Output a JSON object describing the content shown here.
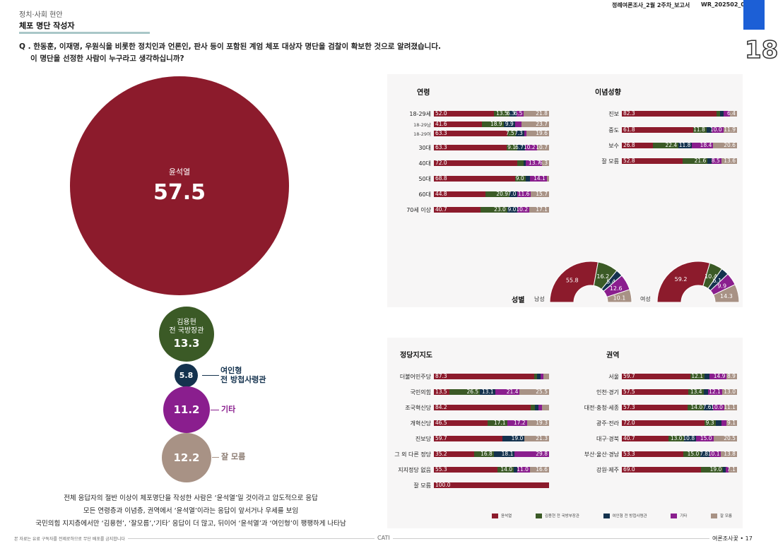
{
  "header": {
    "report_name": "정례여론조사_2월 2주차_보고서",
    "report_code": "WR_202502_0"
  },
  "page_number_large": "18",
  "section": "정치·사회 현안",
  "page_title": "체포 명단 작성자",
  "question": {
    "line1": "Q . 한동훈, 이재명, 우원식을 비롯한 정치인과 언론인, 판사 등이 포함된 계엄 체포 대상자 명단을 검찰이 확보한 것으로 알려졌습니다.",
    "line2": "이 명단을 선정한 사람이 누구라고 생각하십니까?"
  },
  "colors": {
    "yoon": "#8c1b2c",
    "kim": "#3b5a26",
    "yeo": "#14324e",
    "other": "#8a1e8e",
    "dk": "#a89285"
  },
  "bubbles": [
    {
      "key": "yoon",
      "label": "윤석열",
      "value": "57.5"
    },
    {
      "key": "kim",
      "label_line1": "김용현",
      "label_line2": "전 국방장관",
      "value": "13.3"
    },
    {
      "key": "yeo",
      "value": "5.8",
      "side_line1": "여인형",
      "side_line2": "전 방첩사령관"
    },
    {
      "key": "other",
      "value": "11.2",
      "side": "기타"
    },
    {
      "key": "dk",
      "value": "12.2",
      "side": "잘 모름"
    }
  ],
  "summary": [
    "전체 응답자의 절반 이상이 체포명단을 작성한 사람은 ‘윤석열’일 것이라고 압도적으로 응답",
    "모든 연령층과 이념층, 권역에서 ‘윤석열’이라는 응답이 앞서거나 우세를 보임",
    "국민의힘 지지층에서만 ‘김용현’, ‘잘모름’,‘기타’ 응답이 더 많고, 뒤이어 ‘윤석열’과 ‘여인형’이 팽팽하게 나타남"
  ],
  "legend": [
    "윤석열",
    "김용현 전 국방부장관",
    "여인형 전 방첩사령관",
    "기타",
    "잘 모름"
  ],
  "chart_data": [
    {
      "type": "bar",
      "title": "연령",
      "rows": [
        {
          "label": "18-29세",
          "values": [
            52.0,
            13.5,
            6.3,
            6.5,
            21.8
          ]
        },
        {
          "label": "18-29남",
          "small": true,
          "values": [
            41.6,
            18.9,
            9.9,
            5.8,
            23.7
          ]
        },
        {
          "label": "18-29여",
          "small": true,
          "values": [
            63.3,
            7.5,
            7.3,
            1.9,
            19.6
          ]
        },
        {
          "label": "30대",
          "values": [
            63.3,
            9.1,
            6.7,
            10.2,
            10.7
          ]
        },
        {
          "label": "40대",
          "values": [
            72.0,
            5.2,
            1.9,
            13.7,
            6.3
          ]
        },
        {
          "label": "50대",
          "values": [
            68.8,
            9.0,
            4.0,
            14.1,
            1.9
          ]
        },
        {
          "label": "60대",
          "values": [
            44.8,
            20.9,
            7.0,
            11.6,
            15.7
          ]
        },
        {
          "label": "70세 이상",
          "values": [
            40.7,
            23.0,
            9.0,
            10.2,
            17.1
          ]
        }
      ]
    },
    {
      "type": "bar",
      "title": "이념성향",
      "rows": [
        {
          "label": "진보",
          "values": [
            82.3,
            3.0,
            3.0,
            5.3,
            6.4
          ]
        },
        {
          "label": "중도",
          "values": [
            61.8,
            11.8,
            4.7,
            10.0,
            11.9
          ]
        },
        {
          "label": "보수",
          "values": [
            26.8,
            22.4,
            11.8,
            18.4,
            20.6
          ]
        },
        {
          "label": "잘 모름",
          "values": [
            52.8,
            21.6,
            3.5,
            8.5,
            13.6
          ]
        }
      ]
    },
    {
      "type": "pie",
      "title": "성별",
      "groups": [
        {
          "label": "남성",
          "values": [
            55.8,
            16.2,
            5.4,
            12.6,
            10.1
          ]
        },
        {
          "label": "여성",
          "values": [
            59.2,
            10.4,
            6.1,
            9.9,
            14.3
          ]
        }
      ]
    },
    {
      "type": "bar",
      "title": "정당지지도",
      "rows": [
        {
          "label": "더불어민주당",
          "values": [
            87.3,
            2.5,
            3.0,
            2.5,
            4.7
          ]
        },
        {
          "label": "국민의힘",
          "values": [
            13.5,
            26.5,
            13.1,
            21.4,
            25.5
          ]
        },
        {
          "label": "조국혁신당",
          "values": [
            84.2,
            3.5,
            3.4,
            3.0,
            5.9
          ]
        },
        {
          "label": "개혁신당",
          "values": [
            46.5,
            17.1,
            0.0,
            17.2,
            19.3
          ]
        },
        {
          "label": "진보당",
          "values": [
            59.7,
            0.0,
            19.0,
            0.0,
            21.3
          ]
        },
        {
          "label": "그 외 다른 정당",
          "values": [
            35.2,
            16.8,
            18.1,
            29.8,
            0.0
          ]
        },
        {
          "label": "지지정당 없음",
          "values": [
            55.3,
            14.0,
            3.0,
            11.0,
            16.6
          ]
        },
        {
          "label": "잘 모름",
          "values": [
            100.0,
            0,
            0,
            0,
            0
          ]
        }
      ]
    },
    {
      "type": "bar",
      "title": "권역",
      "rows": [
        {
          "label": "서울",
          "values": [
            59.7,
            12.1,
            4.4,
            14.9,
            8.9
          ]
        },
        {
          "label": "인천·경기",
          "values": [
            57.5,
            13.4,
            4.0,
            12.1,
            13.0
          ]
        },
        {
          "label": "대전·충청·세종",
          "values": [
            57.3,
            14.0,
            7.6,
            10.0,
            11.1
          ]
        },
        {
          "label": "광주·전라",
          "values": [
            72.0,
            9.3,
            5.1,
            4.5,
            9.1
          ]
        },
        {
          "label": "대구·경북",
          "values": [
            40.7,
            13.0,
            10.8,
            15.0,
            20.5
          ]
        },
        {
          "label": "부산·울산·경남",
          "values": [
            53.3,
            15.0,
            7.8,
            10.1,
            13.8
          ]
        },
        {
          "label": "강원·제주",
          "values": [
            69.0,
            19.0,
            2.5,
            2.5,
            7.1
          ]
        }
      ]
    }
  ],
  "footer": {
    "left_note": "본 자료는 유료 구독자를 전제로하므로 무단 배포를 금지합니다",
    "center": "CATI",
    "right": "여론조사꽃 • 17"
  }
}
